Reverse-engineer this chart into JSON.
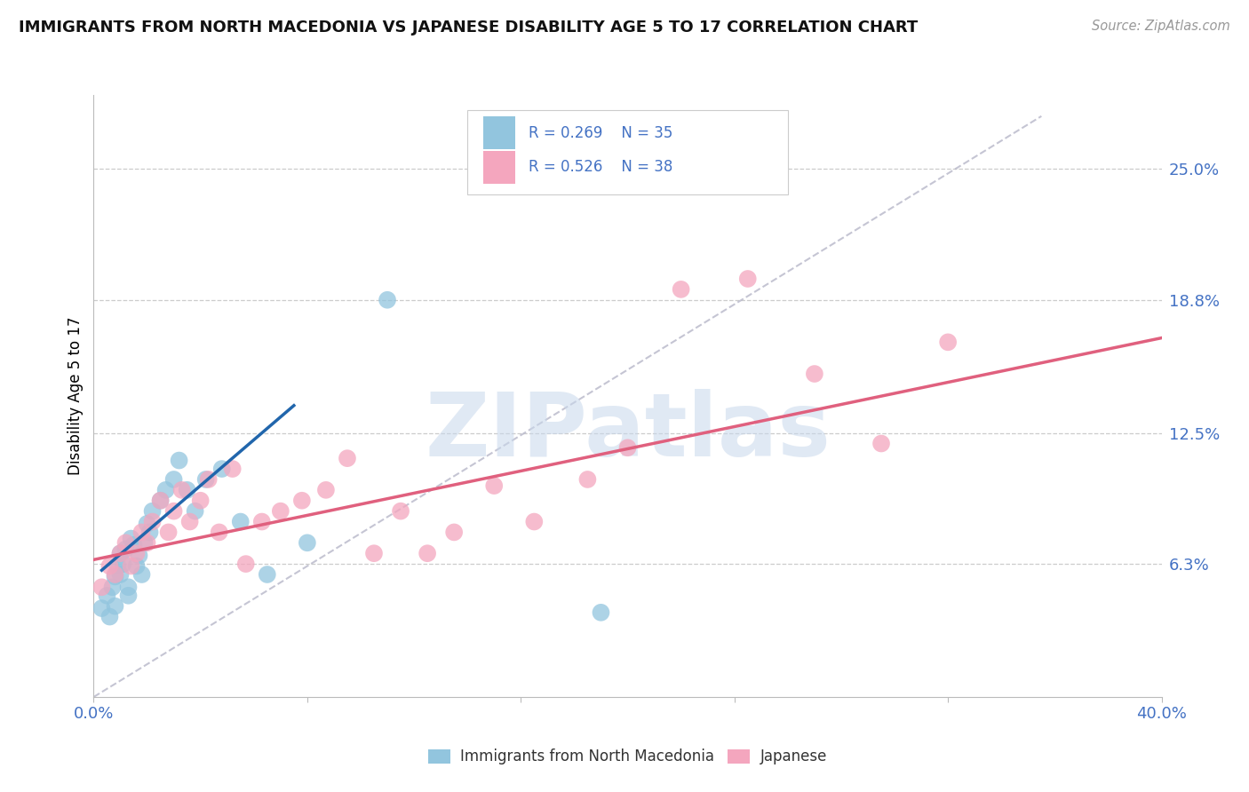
{
  "title": "IMMIGRANTS FROM NORTH MACEDONIA VS JAPANESE DISABILITY AGE 5 TO 17 CORRELATION CHART",
  "source": "Source: ZipAtlas.com",
  "ylabel": "Disability Age 5 to 17",
  "xlim": [
    0.0,
    0.4
  ],
  "ylim": [
    0.0,
    0.285
  ],
  "ytick_positions": [
    0.063,
    0.125,
    0.188,
    0.25
  ],
  "ytick_labels": [
    "6.3%",
    "12.5%",
    "18.8%",
    "25.0%"
  ],
  "xtick_positions": [
    0.0,
    0.08,
    0.16,
    0.24,
    0.32,
    0.4
  ],
  "watermark": "ZIPatlas",
  "legend_r1": "R = 0.269",
  "legend_n1": "N = 35",
  "legend_r2": "R = 0.526",
  "legend_n2": "N = 38",
  "blue_color": "#92c5de",
  "pink_color": "#f4a6be",
  "blue_line_color": "#2166ac",
  "pink_line_color": "#e0607e",
  "ref_line_color": "#bbbbcc",
  "axis_label_color": "#4472c4",
  "grid_color": "#cccccc",
  "blue_scatter_x": [
    0.003,
    0.005,
    0.006,
    0.007,
    0.008,
    0.008,
    0.009,
    0.01,
    0.01,
    0.011,
    0.012,
    0.013,
    0.013,
    0.014,
    0.015,
    0.016,
    0.017,
    0.018,
    0.019,
    0.02,
    0.021,
    0.022,
    0.025,
    0.027,
    0.03,
    0.032,
    0.035,
    0.038,
    0.042,
    0.048,
    0.055,
    0.065,
    0.08,
    0.11,
    0.19
  ],
  "blue_scatter_y": [
    0.042,
    0.048,
    0.038,
    0.052,
    0.057,
    0.043,
    0.062,
    0.058,
    0.068,
    0.063,
    0.07,
    0.052,
    0.048,
    0.075,
    0.072,
    0.062,
    0.067,
    0.058,
    0.073,
    0.082,
    0.078,
    0.088,
    0.093,
    0.098,
    0.103,
    0.112,
    0.098,
    0.088,
    0.103,
    0.108,
    0.083,
    0.058,
    0.073,
    0.188,
    0.04
  ],
  "pink_scatter_x": [
    0.003,
    0.006,
    0.008,
    0.01,
    0.012,
    0.014,
    0.016,
    0.018,
    0.02,
    0.022,
    0.025,
    0.028,
    0.03,
    0.033,
    0.036,
    0.04,
    0.043,
    0.047,
    0.052,
    0.057,
    0.063,
    0.07,
    0.078,
    0.087,
    0.095,
    0.105,
    0.115,
    0.125,
    0.135,
    0.15,
    0.165,
    0.185,
    0.2,
    0.22,
    0.245,
    0.27,
    0.295,
    0.32
  ],
  "pink_scatter_y": [
    0.052,
    0.062,
    0.058,
    0.068,
    0.073,
    0.062,
    0.068,
    0.078,
    0.073,
    0.083,
    0.093,
    0.078,
    0.088,
    0.098,
    0.083,
    0.093,
    0.103,
    0.078,
    0.108,
    0.063,
    0.083,
    0.088,
    0.093,
    0.098,
    0.113,
    0.068,
    0.088,
    0.068,
    0.078,
    0.1,
    0.083,
    0.103,
    0.118,
    0.193,
    0.198,
    0.153,
    0.12,
    0.168
  ],
  "blue_trend_x": [
    0.003,
    0.075
  ],
  "blue_trend_y": [
    0.06,
    0.138
  ],
  "pink_trend_x": [
    0.0,
    0.4
  ],
  "pink_trend_y": [
    0.065,
    0.17
  ],
  "ref_line_x": [
    0.0,
    0.355
  ],
  "ref_line_y": [
    0.0,
    0.275
  ]
}
